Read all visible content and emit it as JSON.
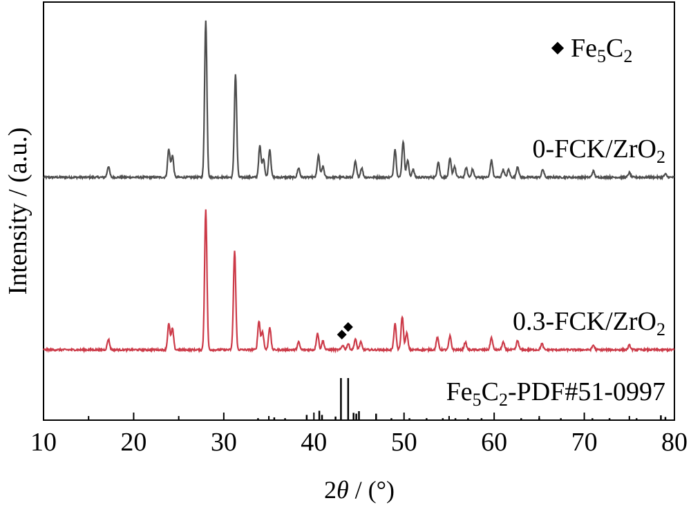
{
  "chart_data": {
    "type": "line",
    "title": "",
    "xlabel_parts": {
      "two": "2",
      "theta": "θ",
      "unit": " / (°)"
    },
    "ylabel": "Intensity / (a.u.)",
    "xlim": [
      10,
      80
    ],
    "xticks": [
      10,
      20,
      30,
      40,
      50,
      60,
      70,
      80
    ],
    "xtick_labels": [
      "10",
      "20",
      "30",
      "40",
      "50",
      "60",
      "70",
      "80"
    ],
    "minor_xtick_step": 5,
    "y_axis_ticks": false,
    "grid": false,
    "legend": {
      "placement": "top-right",
      "marker": "◆",
      "parts": {
        "base": "Fe",
        "sub1": "5",
        "mid": "C",
        "sub2": "2"
      }
    },
    "series": [
      {
        "name_parts": {
          "base": "0-FCK/ZrO",
          "sub": "2"
        },
        "color": "#4d4d4d",
        "baseline": 0.05,
        "noise": 0.012,
        "peaks": [
          {
            "x": 17.2,
            "h": 0.07
          },
          {
            "x": 23.9,
            "h": 0.18
          },
          {
            "x": 24.3,
            "h": 0.14
          },
          {
            "x": 28.0,
            "h": 1.0
          },
          {
            "x": 31.3,
            "h": 0.66
          },
          {
            "x": 34.0,
            "h": 0.2
          },
          {
            "x": 34.4,
            "h": 0.12
          },
          {
            "x": 35.1,
            "h": 0.18
          },
          {
            "x": 38.3,
            "h": 0.06
          },
          {
            "x": 40.5,
            "h": 0.14
          },
          {
            "x": 41.0,
            "h": 0.07
          },
          {
            "x": 44.6,
            "h": 0.1
          },
          {
            "x": 45.3,
            "h": 0.06
          },
          {
            "x": 49.0,
            "h": 0.18
          },
          {
            "x": 49.9,
            "h": 0.23
          },
          {
            "x": 50.4,
            "h": 0.11
          },
          {
            "x": 51.0,
            "h": 0.05
          },
          {
            "x": 53.8,
            "h": 0.1
          },
          {
            "x": 55.1,
            "h": 0.12
          },
          {
            "x": 55.6,
            "h": 0.07
          },
          {
            "x": 56.9,
            "h": 0.06
          },
          {
            "x": 57.6,
            "h": 0.05
          },
          {
            "x": 59.7,
            "h": 0.11
          },
          {
            "x": 61.0,
            "h": 0.05
          },
          {
            "x": 61.6,
            "h": 0.05
          },
          {
            "x": 62.6,
            "h": 0.07
          },
          {
            "x": 65.4,
            "h": 0.05
          },
          {
            "x": 71.0,
            "h": 0.04
          },
          {
            "x": 75.0,
            "h": 0.03
          },
          {
            "x": 79.0,
            "h": 0.02
          }
        ]
      },
      {
        "name_parts": {
          "base": "0.3-FCK/ZrO",
          "sub": "2"
        },
        "color": "#cc3a48",
        "baseline": 0.05,
        "noise": 0.012,
        "peaks": [
          {
            "x": 17.2,
            "h": 0.07
          },
          {
            "x": 23.9,
            "h": 0.17
          },
          {
            "x": 24.3,
            "h": 0.14
          },
          {
            "x": 28.0,
            "h": 0.92
          },
          {
            "x": 31.2,
            "h": 0.65
          },
          {
            "x": 33.9,
            "h": 0.19
          },
          {
            "x": 34.3,
            "h": 0.12
          },
          {
            "x": 35.1,
            "h": 0.15
          },
          {
            "x": 38.3,
            "h": 0.05
          },
          {
            "x": 40.4,
            "h": 0.11
          },
          {
            "x": 41.0,
            "h": 0.06
          },
          {
            "x": 43.2,
            "h": 0.03
          },
          {
            "x": 43.8,
            "h": 0.04
          },
          {
            "x": 44.6,
            "h": 0.07
          },
          {
            "x": 45.2,
            "h": 0.05
          },
          {
            "x": 49.0,
            "h": 0.17
          },
          {
            "x": 49.8,
            "h": 0.22
          },
          {
            "x": 50.3,
            "h": 0.11
          },
          {
            "x": 53.7,
            "h": 0.08
          },
          {
            "x": 55.1,
            "h": 0.09
          },
          {
            "x": 56.8,
            "h": 0.05
          },
          {
            "x": 59.7,
            "h": 0.08
          },
          {
            "x": 61.0,
            "h": 0.05
          },
          {
            "x": 62.6,
            "h": 0.06
          },
          {
            "x": 65.3,
            "h": 0.04
          },
          {
            "x": 71.0,
            "h": 0.03
          },
          {
            "x": 75.0,
            "h": 0.03
          }
        ],
        "markers": [
          {
            "x": 43.1,
            "y_rel": 0.1
          },
          {
            "x": 43.8,
            "y_rel": 0.15
          }
        ]
      }
    ],
    "reference": {
      "name_parts": {
        "base": "Fe",
        "sub1": "5",
        "mid": "C",
        "sub2": "2",
        "tail": "-PDF#51-0997"
      },
      "color": "#000000",
      "lines": [
        {
          "x": 33.8,
          "h": 0.03
        },
        {
          "x": 35.6,
          "h": 0.05
        },
        {
          "x": 36.8,
          "h": 0.03
        },
        {
          "x": 39.2,
          "h": 0.11
        },
        {
          "x": 40.6,
          "h": 0.21
        },
        {
          "x": 40.9,
          "h": 0.11
        },
        {
          "x": 42.4,
          "h": 0.07
        },
        {
          "x": 43.0,
          "h": 1.0
        },
        {
          "x": 43.8,
          "h": 1.0
        },
        {
          "x": 44.4,
          "h": 0.16
        },
        {
          "x": 44.7,
          "h": 0.14
        },
        {
          "x": 45.0,
          "h": 0.2
        },
        {
          "x": 46.9,
          "h": 0.14
        },
        {
          "x": 48.6,
          "h": 0.03
        },
        {
          "x": 50.6,
          "h": 0.03
        },
        {
          "x": 52.5,
          "h": 0.03
        },
        {
          "x": 54.3,
          "h": 0.03
        },
        {
          "x": 55.7,
          "h": 0.03
        },
        {
          "x": 57.1,
          "h": 0.03
        },
        {
          "x": 58.6,
          "h": 0.03
        },
        {
          "x": 63.0,
          "h": 0.03
        },
        {
          "x": 65.0,
          "h": 0.03
        },
        {
          "x": 67.4,
          "h": 0.03
        },
        {
          "x": 70.9,
          "h": 0.03
        },
        {
          "x": 72.8,
          "h": 0.03
        },
        {
          "x": 75.8,
          "h": 0.03
        },
        {
          "x": 78.5,
          "h": 0.1
        },
        {
          "x": 79.0,
          "h": 0.06
        }
      ]
    }
  }
}
